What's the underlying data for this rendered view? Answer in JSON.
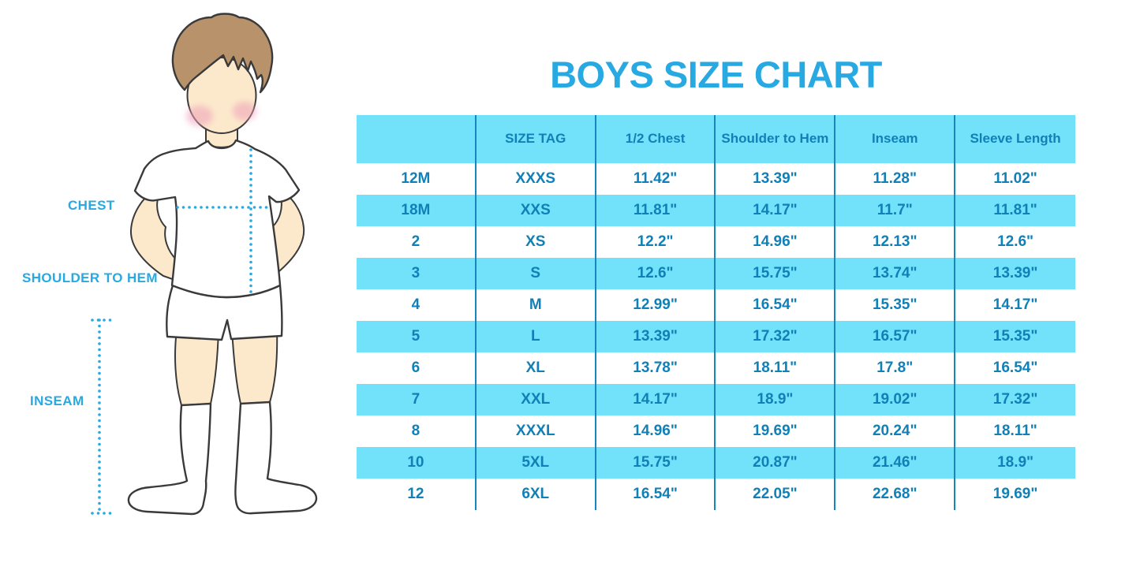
{
  "title": "BOYS SIZE CHART",
  "figure": {
    "labels": {
      "chest": "CHEST",
      "shoulder_to_hem": "SHOULDER TO HEM",
      "inseam": "INSEAM"
    }
  },
  "colors": {
    "accent": "#29A9E1",
    "table_text": "#1180B6",
    "divider": "#1786BE",
    "row_fill": "#72E1FA",
    "outline": "#3A3A3A",
    "skin": "#FCE9CC",
    "hair": "#B8926B",
    "blush": "#EF9FB8"
  },
  "chart_data": {
    "type": "table",
    "title": "BOYS SIZE CHART",
    "columns": [
      "",
      "SIZE TAG",
      "1/2 Chest",
      "Shoulder to Hem",
      "Inseam",
      "Sleeve Length"
    ],
    "rows": [
      [
        "12M",
        "XXXS",
        "11.42\"",
        "13.39\"",
        "11.28\"",
        "11.02\""
      ],
      [
        "18M",
        "XXS",
        "11.81\"",
        "14.17\"",
        "11.7\"",
        "11.81\""
      ],
      [
        "2",
        "XS",
        "12.2\"",
        "14.96\"",
        "12.13\"",
        "12.6\""
      ],
      [
        "3",
        "S",
        "12.6\"",
        "15.75\"",
        "13.74\"",
        "13.39\""
      ],
      [
        "4",
        "M",
        "12.99\"",
        "16.54\"",
        "15.35\"",
        "14.17\""
      ],
      [
        "5",
        "L",
        "13.39\"",
        "17.32\"",
        "16.57\"",
        "15.35\""
      ],
      [
        "6",
        "XL",
        "13.78\"",
        "18.11\"",
        "17.8\"",
        "16.54\""
      ],
      [
        "7",
        "XXL",
        "14.17\"",
        "18.9\"",
        "19.02\"",
        "17.32\""
      ],
      [
        "8",
        "XXXL",
        "14.96\"",
        "19.69\"",
        "20.24\"",
        "18.11\""
      ],
      [
        "10",
        "5XL",
        "15.75\"",
        "20.87\"",
        "21.46\"",
        "18.9\""
      ],
      [
        "12",
        "6XL",
        "16.54\"",
        "22.05\"",
        "22.68\"",
        "19.69\""
      ]
    ]
  }
}
